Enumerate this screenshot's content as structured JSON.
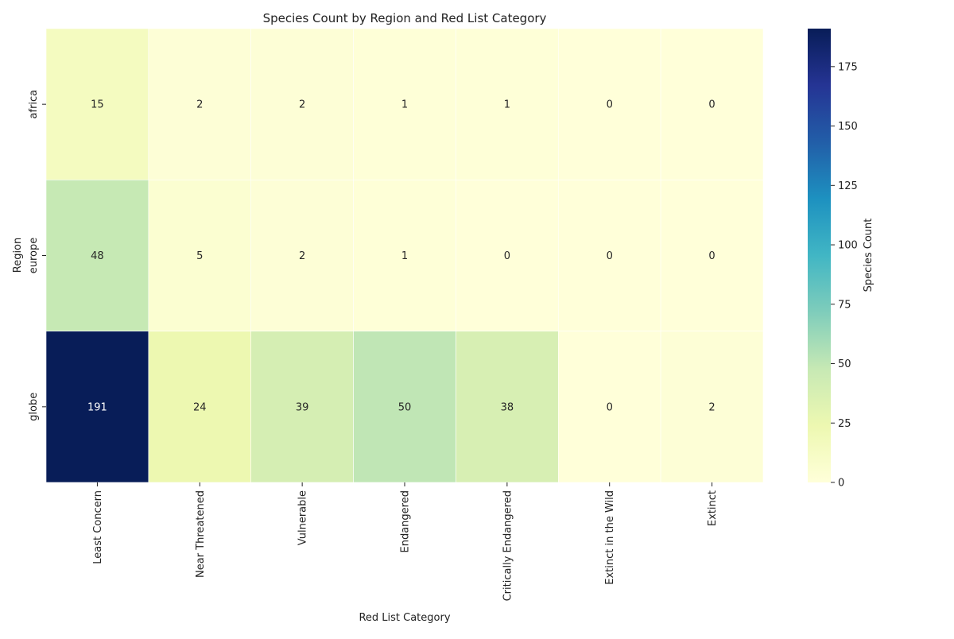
{
  "chart_data": {
    "type": "heatmap",
    "title": "Species Count by Region and Red List Category",
    "xlabel": "Red List Category",
    "ylabel": "Region",
    "x_categories": [
      "Least Concern",
      "Near Threatened",
      "Vulnerable",
      "Endangered",
      "Critically Endangered",
      "Extinct in the Wild",
      "Extinct"
    ],
    "y_categories": [
      "africa",
      "europe",
      "globe"
    ],
    "values": [
      [
        15,
        2,
        2,
        1,
        1,
        0,
        0
      ],
      [
        48,
        5,
        2,
        1,
        0,
        0,
        0
      ],
      [
        191,
        24,
        39,
        50,
        38,
        0,
        2
      ]
    ],
    "value_range": [
      0,
      191
    ],
    "colormap": "YlGnBu",
    "colormap_stops": [
      "#ffffd9",
      "#edf8b1",
      "#c7e9b4",
      "#7fcdbb",
      "#41b6c4",
      "#1d91c0",
      "#225ea8",
      "#253494",
      "#081d58"
    ],
    "annotations": true,
    "colorbar": {
      "label": "Species Count",
      "ticks": [
        0,
        25,
        50,
        75,
        100,
        125,
        150,
        175
      ]
    }
  }
}
